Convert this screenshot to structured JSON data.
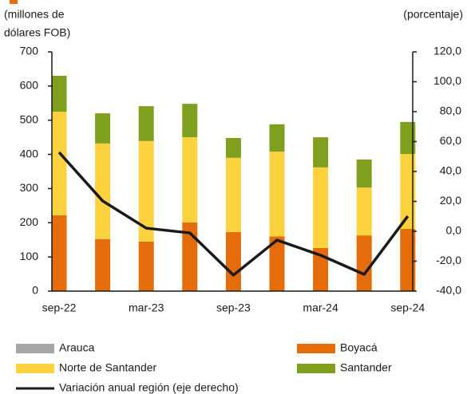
{
  "chart_data": {
    "type": "bar",
    "y_label": [
      "(millones de",
      "dólares FOB)"
    ],
    "y2_label": "(porcentaje)",
    "categories": [
      "sep-22",
      null,
      "mar-23",
      null,
      "sep-23",
      null,
      "mar-24",
      null,
      "sep-24"
    ],
    "stacked": true,
    "series": [
      {
        "name": "Arauca",
        "color": "#a6a6a6",
        "values": [
          0,
          0,
          0,
          0,
          0,
          0,
          0,
          0,
          0
        ]
      },
      {
        "name": "Boyacá",
        "color": "#e46c0a",
        "values": [
          222,
          152,
          145,
          201,
          173,
          160,
          126,
          163,
          182
        ]
      },
      {
        "name": "Norte de Santander",
        "color": "#fcd33f",
        "values": [
          303,
          280,
          294,
          249,
          217,
          248,
          236,
          140,
          219
        ]
      },
      {
        "name": "Santander",
        "color": "#7f9f1e",
        "values": [
          105,
          88,
          102,
          98,
          58,
          80,
          88,
          82,
          94
        ]
      },
      {
        "name": "Variación anual región (eje derecho)",
        "color": "#1a1a1a",
        "type": "line",
        "axis": "y2",
        "values": [
          52.8,
          20.3,
          2.1,
          -1.1,
          -29.3,
          -5.9,
          -16,
          -28.8,
          10.1
        ]
      }
    ],
    "ylim": [
      0,
      700
    ],
    "yticks": [
      0,
      100,
      200,
      300,
      400,
      500,
      600,
      700
    ],
    "y2lim": [
      -40,
      120
    ],
    "y2ticks": [
      {
        "value": -40,
        "label": "-40,0"
      },
      {
        "value": -20,
        "label": "-20,0"
      },
      {
        "value": 0,
        "label": "0,0"
      },
      {
        "value": 20,
        "label": "20,0"
      },
      {
        "value": 40,
        "label": "40,0"
      },
      {
        "value": 60,
        "label": "60,0"
      },
      {
        "value": 80,
        "label": "80,0"
      },
      {
        "value": 100,
        "label": "100,0"
      },
      {
        "value": 120,
        "label": "120,0"
      }
    ]
  }
}
